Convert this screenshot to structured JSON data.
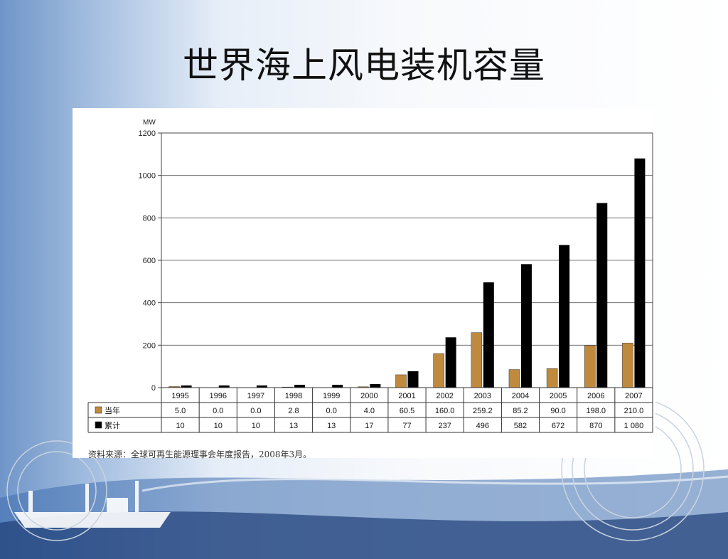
{
  "slide": {
    "title": "世界海上风电装机容量"
  },
  "chart_data": {
    "type": "bar",
    "ylabel": "MW",
    "ylim": [
      0,
      1200
    ],
    "yticks": [
      0,
      200,
      400,
      600,
      800,
      1000,
      1200
    ],
    "yticklabels": [
      "0",
      "200",
      "400",
      "600",
      "800",
      "1000",
      "1200"
    ],
    "grid": true,
    "categories": [
      "1995",
      "1996",
      "1997",
      "1998",
      "1999",
      "2000",
      "2001",
      "2002",
      "2003",
      "2004",
      "2005",
      "2006",
      "2007"
    ],
    "series": [
      {
        "name": "当年",
        "color": "#c08a3e",
        "values": [
          5.0,
          0.0,
          0.0,
          2.8,
          0.0,
          4.0,
          60.5,
          160.0,
          259.2,
          85.2,
          90.0,
          198.0,
          210.0
        ],
        "labels": [
          "5.0",
          "0.0",
          "0.0",
          "2.8",
          "0.0",
          "4.0",
          "60.5",
          "160.0",
          "259.2",
          "85.2",
          "90.0",
          "198.0",
          "210.0"
        ]
      },
      {
        "name": "累计",
        "color": "#000000",
        "values": [
          10,
          10,
          10,
          13,
          13,
          17,
          77,
          237,
          496,
          582,
          672,
          870,
          1080
        ],
        "labels": [
          "10",
          "10",
          "10",
          "13",
          "13",
          "17",
          "77",
          "237",
          "496",
          "582",
          "672",
          "870",
          "1 080"
        ]
      }
    ],
    "source": "资料来源：全球可再生能源理事会年度报告，2008年3月。"
  }
}
